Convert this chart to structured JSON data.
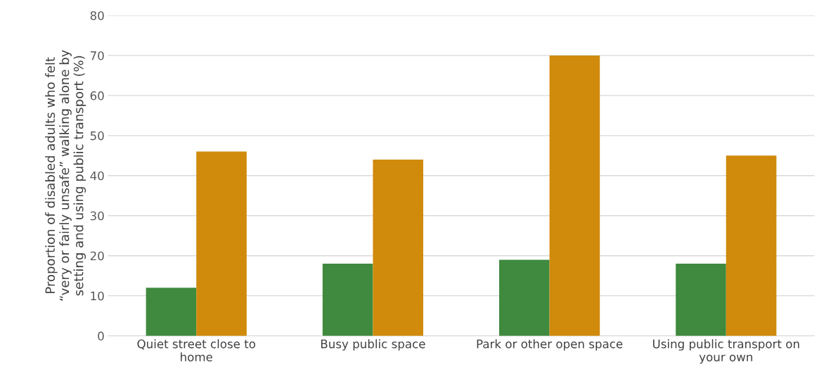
{
  "chart_data": {
    "type": "bar",
    "categories": [
      "Quiet street close to\nhome",
      "Busy public space",
      "Park or other open space",
      "Using public transport on\nyour own"
    ],
    "ylabel": "Proportion of disabled adults who felt\n“very or fairly unsafe” walking alone by\nsetting and using public transport (%)",
    "series": [
      {
        "color": "#3f8a3e",
        "values": [
          12,
          18,
          19,
          18
        ]
      },
      {
        "color": "#d08a0c",
        "values": [
          46,
          44,
          70,
          45
        ]
      }
    ],
    "ylim": [
      0,
      80
    ],
    "yticks": [
      0,
      10,
      20,
      30,
      40,
      50,
      60,
      70,
      80
    ],
    "grid": "y",
    "legend": false
  }
}
